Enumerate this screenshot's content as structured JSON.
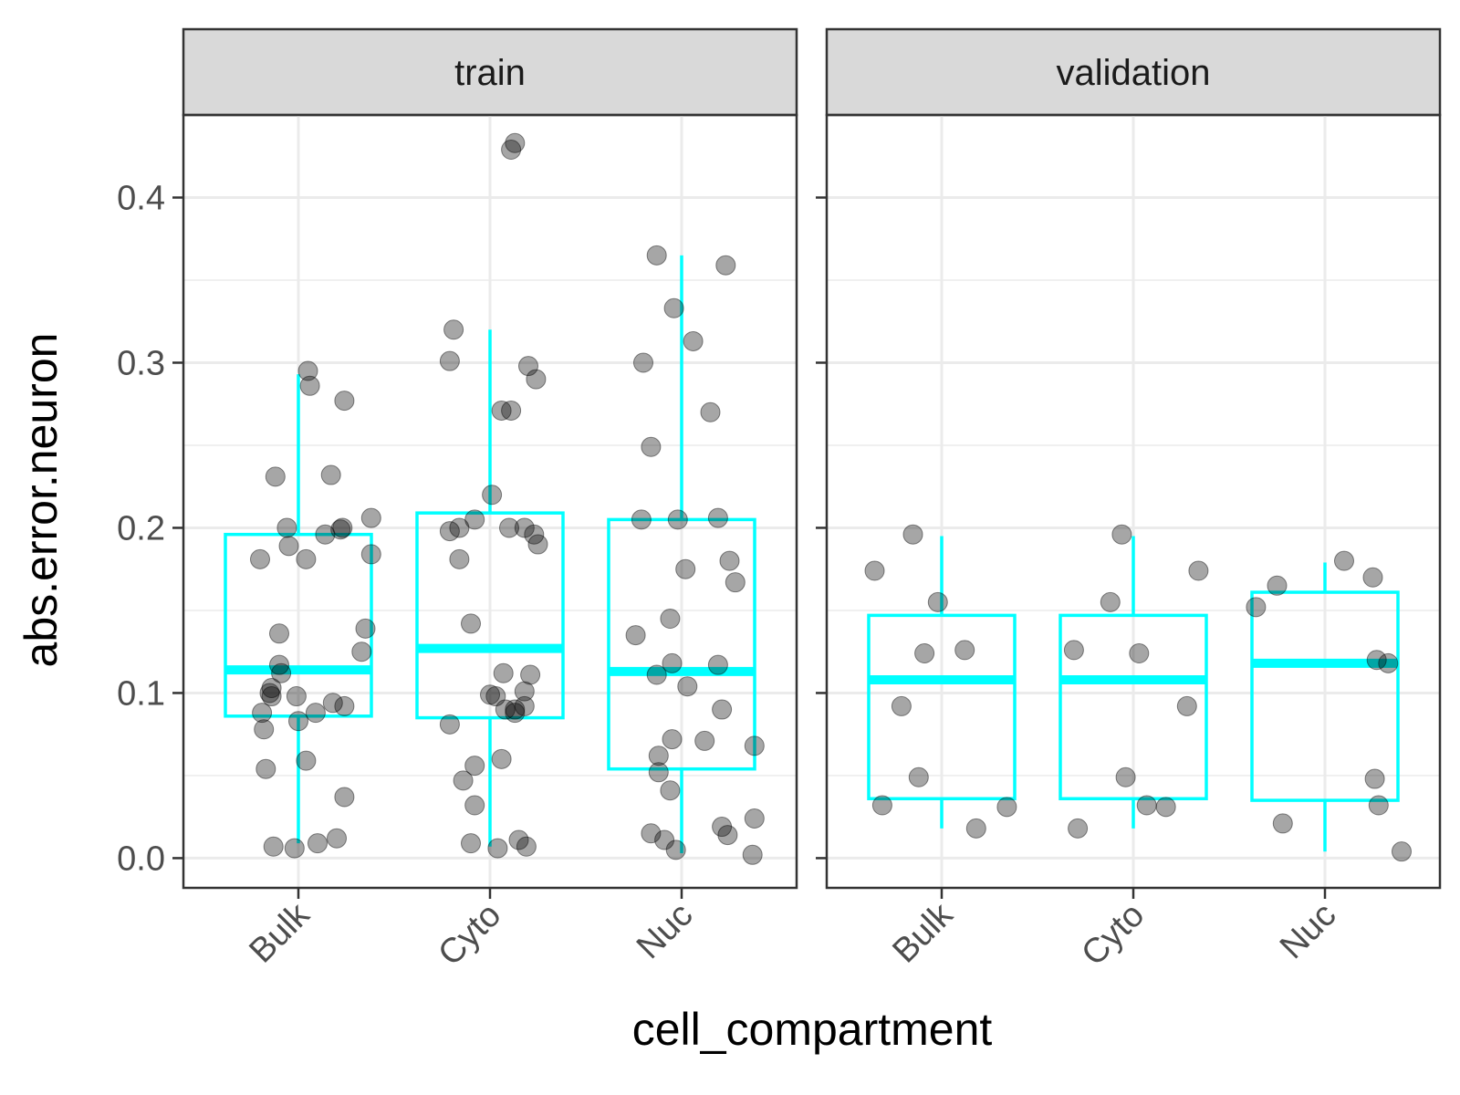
{
  "chart_data": {
    "type": "box",
    "xlabel": "cell_compartment",
    "ylabel": "abs.error.neuron",
    "categories": [
      "Bulk",
      "Cyto",
      "Nuc"
    ],
    "ylim": [
      -0.018,
      0.45
    ],
    "y_ticks": [
      "0.0",
      "0.1",
      "0.2",
      "0.3",
      "0.4"
    ],
    "grid": true,
    "colors": {
      "box": "#00FFFF",
      "points": "#000000",
      "strip_bg": "#D9D9D9",
      "grid": "#EBEBEB",
      "border": "#333333"
    },
    "facets": [
      {
        "label": "train",
        "boxes": [
          {
            "category": "Bulk",
            "lower_whisker": 0.009,
            "q1": 0.086,
            "median": 0.114,
            "q3": 0.196,
            "upper_whisker": 0.293
          },
          {
            "category": "Cyto",
            "lower_whisker": 0.007,
            "q1": 0.085,
            "median": 0.127,
            "q3": 0.209,
            "upper_whisker": 0.32
          },
          {
            "category": "Nuc",
            "lower_whisker": 0.003,
            "q1": 0.054,
            "median": 0.113,
            "q3": 0.205,
            "upper_whisker": 0.365
          }
        ],
        "points": [
          {
            "x": 0.8,
            "y": 0.181
          },
          {
            "x": 0.81,
            "y": 0.088
          },
          {
            "x": 0.82,
            "y": 0.078
          },
          {
            "x": 0.83,
            "y": 0.054
          },
          {
            "x": 0.85,
            "y": 0.1
          },
          {
            "x": 0.86,
            "y": 0.103
          },
          {
            "x": 0.86,
            "y": 0.098
          },
          {
            "x": 0.87,
            "y": 0.007
          },
          {
            "x": 0.88,
            "y": 0.231
          },
          {
            "x": 0.9,
            "y": 0.136
          },
          {
            "x": 0.9,
            "y": 0.117
          },
          {
            "x": 0.91,
            "y": 0.112
          },
          {
            "x": 0.94,
            "y": 0.2
          },
          {
            "x": 0.95,
            "y": 0.189
          },
          {
            "x": 0.98,
            "y": 0.006
          },
          {
            "x": 0.99,
            "y": 0.098
          },
          {
            "x": 1.0,
            "y": 0.083
          },
          {
            "x": 1.04,
            "y": 0.181
          },
          {
            "x": 1.04,
            "y": 0.059
          },
          {
            "x": 1.05,
            "y": 0.295
          },
          {
            "x": 1.06,
            "y": 0.286
          },
          {
            "x": 1.09,
            "y": 0.088
          },
          {
            "x": 1.1,
            "y": 0.009
          },
          {
            "x": 1.14,
            "y": 0.196
          },
          {
            "x": 1.17,
            "y": 0.232
          },
          {
            "x": 1.18,
            "y": 0.094
          },
          {
            "x": 1.2,
            "y": 0.012
          },
          {
            "x": 1.22,
            "y": 0.199
          },
          {
            "x": 1.23,
            "y": 0.2
          },
          {
            "x": 1.24,
            "y": 0.277
          },
          {
            "x": 1.24,
            "y": 0.092
          },
          {
            "x": 1.24,
            "y": 0.037
          },
          {
            "x": 1.33,
            "y": 0.125
          },
          {
            "x": 1.35,
            "y": 0.139
          },
          {
            "x": 1.38,
            "y": 0.206
          },
          {
            "x": 1.38,
            "y": 0.184
          },
          {
            "x": 1.79,
            "y": 0.301
          },
          {
            "x": 1.79,
            "y": 0.198
          },
          {
            "x": 1.79,
            "y": 0.081
          },
          {
            "x": 1.81,
            "y": 0.32
          },
          {
            "x": 1.84,
            "y": 0.2
          },
          {
            "x": 1.84,
            "y": 0.181
          },
          {
            "x": 1.86,
            "y": 0.047
          },
          {
            "x": 1.9,
            "y": 0.142
          },
          {
            "x": 1.9,
            "y": 0.009
          },
          {
            "x": 1.92,
            "y": 0.205
          },
          {
            "x": 1.92,
            "y": 0.056
          },
          {
            "x": 1.92,
            "y": 0.032
          },
          {
            "x": 2.0,
            "y": 0.099
          },
          {
            "x": 2.01,
            "y": 0.22
          },
          {
            "x": 2.03,
            "y": 0.098
          },
          {
            "x": 2.04,
            "y": 0.006
          },
          {
            "x": 2.06,
            "y": 0.271
          },
          {
            "x": 2.06,
            "y": 0.06
          },
          {
            "x": 2.07,
            "y": 0.112
          },
          {
            "x": 2.08,
            "y": 0.09
          },
          {
            "x": 2.1,
            "y": 0.2
          },
          {
            "x": 2.11,
            "y": 0.271
          },
          {
            "x": 2.11,
            "y": 0.429
          },
          {
            "x": 2.13,
            "y": 0.09
          },
          {
            "x": 2.13,
            "y": 0.088
          },
          {
            "x": 2.13,
            "y": 0.433
          },
          {
            "x": 2.15,
            "y": 0.011
          },
          {
            "x": 2.18,
            "y": 0.2
          },
          {
            "x": 2.18,
            "y": 0.101
          },
          {
            "x": 2.18,
            "y": 0.092
          },
          {
            "x": 2.19,
            "y": 0.007
          },
          {
            "x": 2.2,
            "y": 0.298
          },
          {
            "x": 2.21,
            "y": 0.111
          },
          {
            "x": 2.23,
            "y": 0.196
          },
          {
            "x": 2.24,
            "y": 0.29
          },
          {
            "x": 2.25,
            "y": 0.19
          },
          {
            "x": 2.76,
            "y": 0.135
          },
          {
            "x": 2.79,
            "y": 0.205
          },
          {
            "x": 2.8,
            "y": 0.3
          },
          {
            "x": 2.84,
            "y": 0.249
          },
          {
            "x": 2.84,
            "y": 0.015
          },
          {
            "x": 2.87,
            "y": 0.365
          },
          {
            "x": 2.87,
            "y": 0.111
          },
          {
            "x": 2.88,
            "y": 0.062
          },
          {
            "x": 2.88,
            "y": 0.052
          },
          {
            "x": 2.91,
            "y": 0.011
          },
          {
            "x": 2.94,
            "y": 0.145
          },
          {
            "x": 2.96,
            "y": 0.333
          },
          {
            "x": 2.95,
            "y": 0.118
          },
          {
            "x": 2.94,
            "y": 0.041
          },
          {
            "x": 2.95,
            "y": 0.072
          },
          {
            "x": 2.97,
            "y": 0.005
          },
          {
            "x": 2.98,
            "y": 0.205
          },
          {
            "x": 3.02,
            "y": 0.175
          },
          {
            "x": 3.03,
            "y": 0.104
          },
          {
            "x": 3.06,
            "y": 0.313
          },
          {
            "x": 3.12,
            "y": 0.071
          },
          {
            "x": 3.15,
            "y": 0.27
          },
          {
            "x": 3.19,
            "y": 0.206
          },
          {
            "x": 3.19,
            "y": 0.117
          },
          {
            "x": 3.21,
            "y": 0.09
          },
          {
            "x": 3.21,
            "y": 0.019
          },
          {
            "x": 3.23,
            "y": 0.359
          },
          {
            "x": 3.24,
            "y": 0.014
          },
          {
            "x": 3.25,
            "y": 0.18
          },
          {
            "x": 3.28,
            "y": 0.167
          },
          {
            "x": 3.37,
            "y": 0.002
          },
          {
            "x": 3.38,
            "y": 0.024
          },
          {
            "x": 3.38,
            "y": 0.068
          }
        ]
      },
      {
        "label": "validation",
        "boxes": [
          {
            "category": "Bulk",
            "lower_whisker": 0.018,
            "q1": 0.036,
            "median": 0.108,
            "q3": 0.147,
            "upper_whisker": 0.195
          },
          {
            "category": "Cyto",
            "lower_whisker": 0.018,
            "q1": 0.036,
            "median": 0.108,
            "q3": 0.147,
            "upper_whisker": 0.195
          },
          {
            "category": "Nuc",
            "lower_whisker": 0.004,
            "q1": 0.035,
            "median": 0.118,
            "q3": 0.161,
            "upper_whisker": 0.179
          }
        ],
        "points": [
          {
            "x": 0.65,
            "y": 0.174
          },
          {
            "x": 0.69,
            "y": 0.032
          },
          {
            "x": 0.79,
            "y": 0.092
          },
          {
            "x": 0.85,
            "y": 0.196
          },
          {
            "x": 0.88,
            "y": 0.049
          },
          {
            "x": 0.91,
            "y": 0.124
          },
          {
            "x": 0.98,
            "y": 0.155
          },
          {
            "x": 1.12,
            "y": 0.126
          },
          {
            "x": 1.18,
            "y": 0.018
          },
          {
            "x": 1.34,
            "y": 0.031
          },
          {
            "x": 1.69,
            "y": 0.126
          },
          {
            "x": 1.71,
            "y": 0.018
          },
          {
            "x": 1.88,
            "y": 0.155
          },
          {
            "x": 1.94,
            "y": 0.196
          },
          {
            "x": 1.96,
            "y": 0.049
          },
          {
            "x": 2.07,
            "y": 0.032
          },
          {
            "x": 2.03,
            "y": 0.124
          },
          {
            "x": 2.17,
            "y": 0.031
          },
          {
            "x": 2.28,
            "y": 0.092
          },
          {
            "x": 2.34,
            "y": 0.174
          },
          {
            "x": 2.64,
            "y": 0.152
          },
          {
            "x": 2.75,
            "y": 0.165
          },
          {
            "x": 2.78,
            "y": 0.021
          },
          {
            "x": 3.1,
            "y": 0.18
          },
          {
            "x": 3.25,
            "y": 0.17
          },
          {
            "x": 3.26,
            "y": 0.048
          },
          {
            "x": 3.27,
            "y": 0.12
          },
          {
            "x": 3.28,
            "y": 0.032
          },
          {
            "x": 3.33,
            "y": 0.118
          },
          {
            "x": 3.4,
            "y": 0.004
          }
        ]
      }
    ]
  }
}
